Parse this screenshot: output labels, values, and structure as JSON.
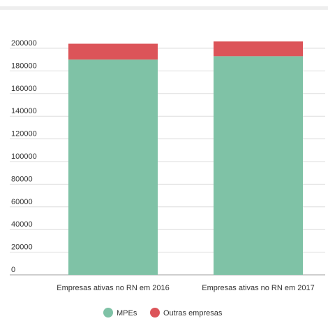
{
  "chart_data": {
    "type": "bar",
    "stacked": true,
    "categories": [
      "Empresas ativas no RN em 2016",
      "Empresas ativas no RN em 2017"
    ],
    "series": [
      {
        "name": "MPEs",
        "color": "#7fc2a6",
        "values": [
          190000,
          193000
        ]
      },
      {
        "name": "Outras empresas",
        "color": "#dc5459",
        "values": [
          14000,
          13000
        ]
      }
    ],
    "yticks": [
      0,
      20000,
      40000,
      60000,
      80000,
      100000,
      120000,
      140000,
      160000,
      180000,
      200000
    ],
    "ylim": [
      0,
      210000
    ],
    "grid": true,
    "legend_position": "bottom"
  }
}
